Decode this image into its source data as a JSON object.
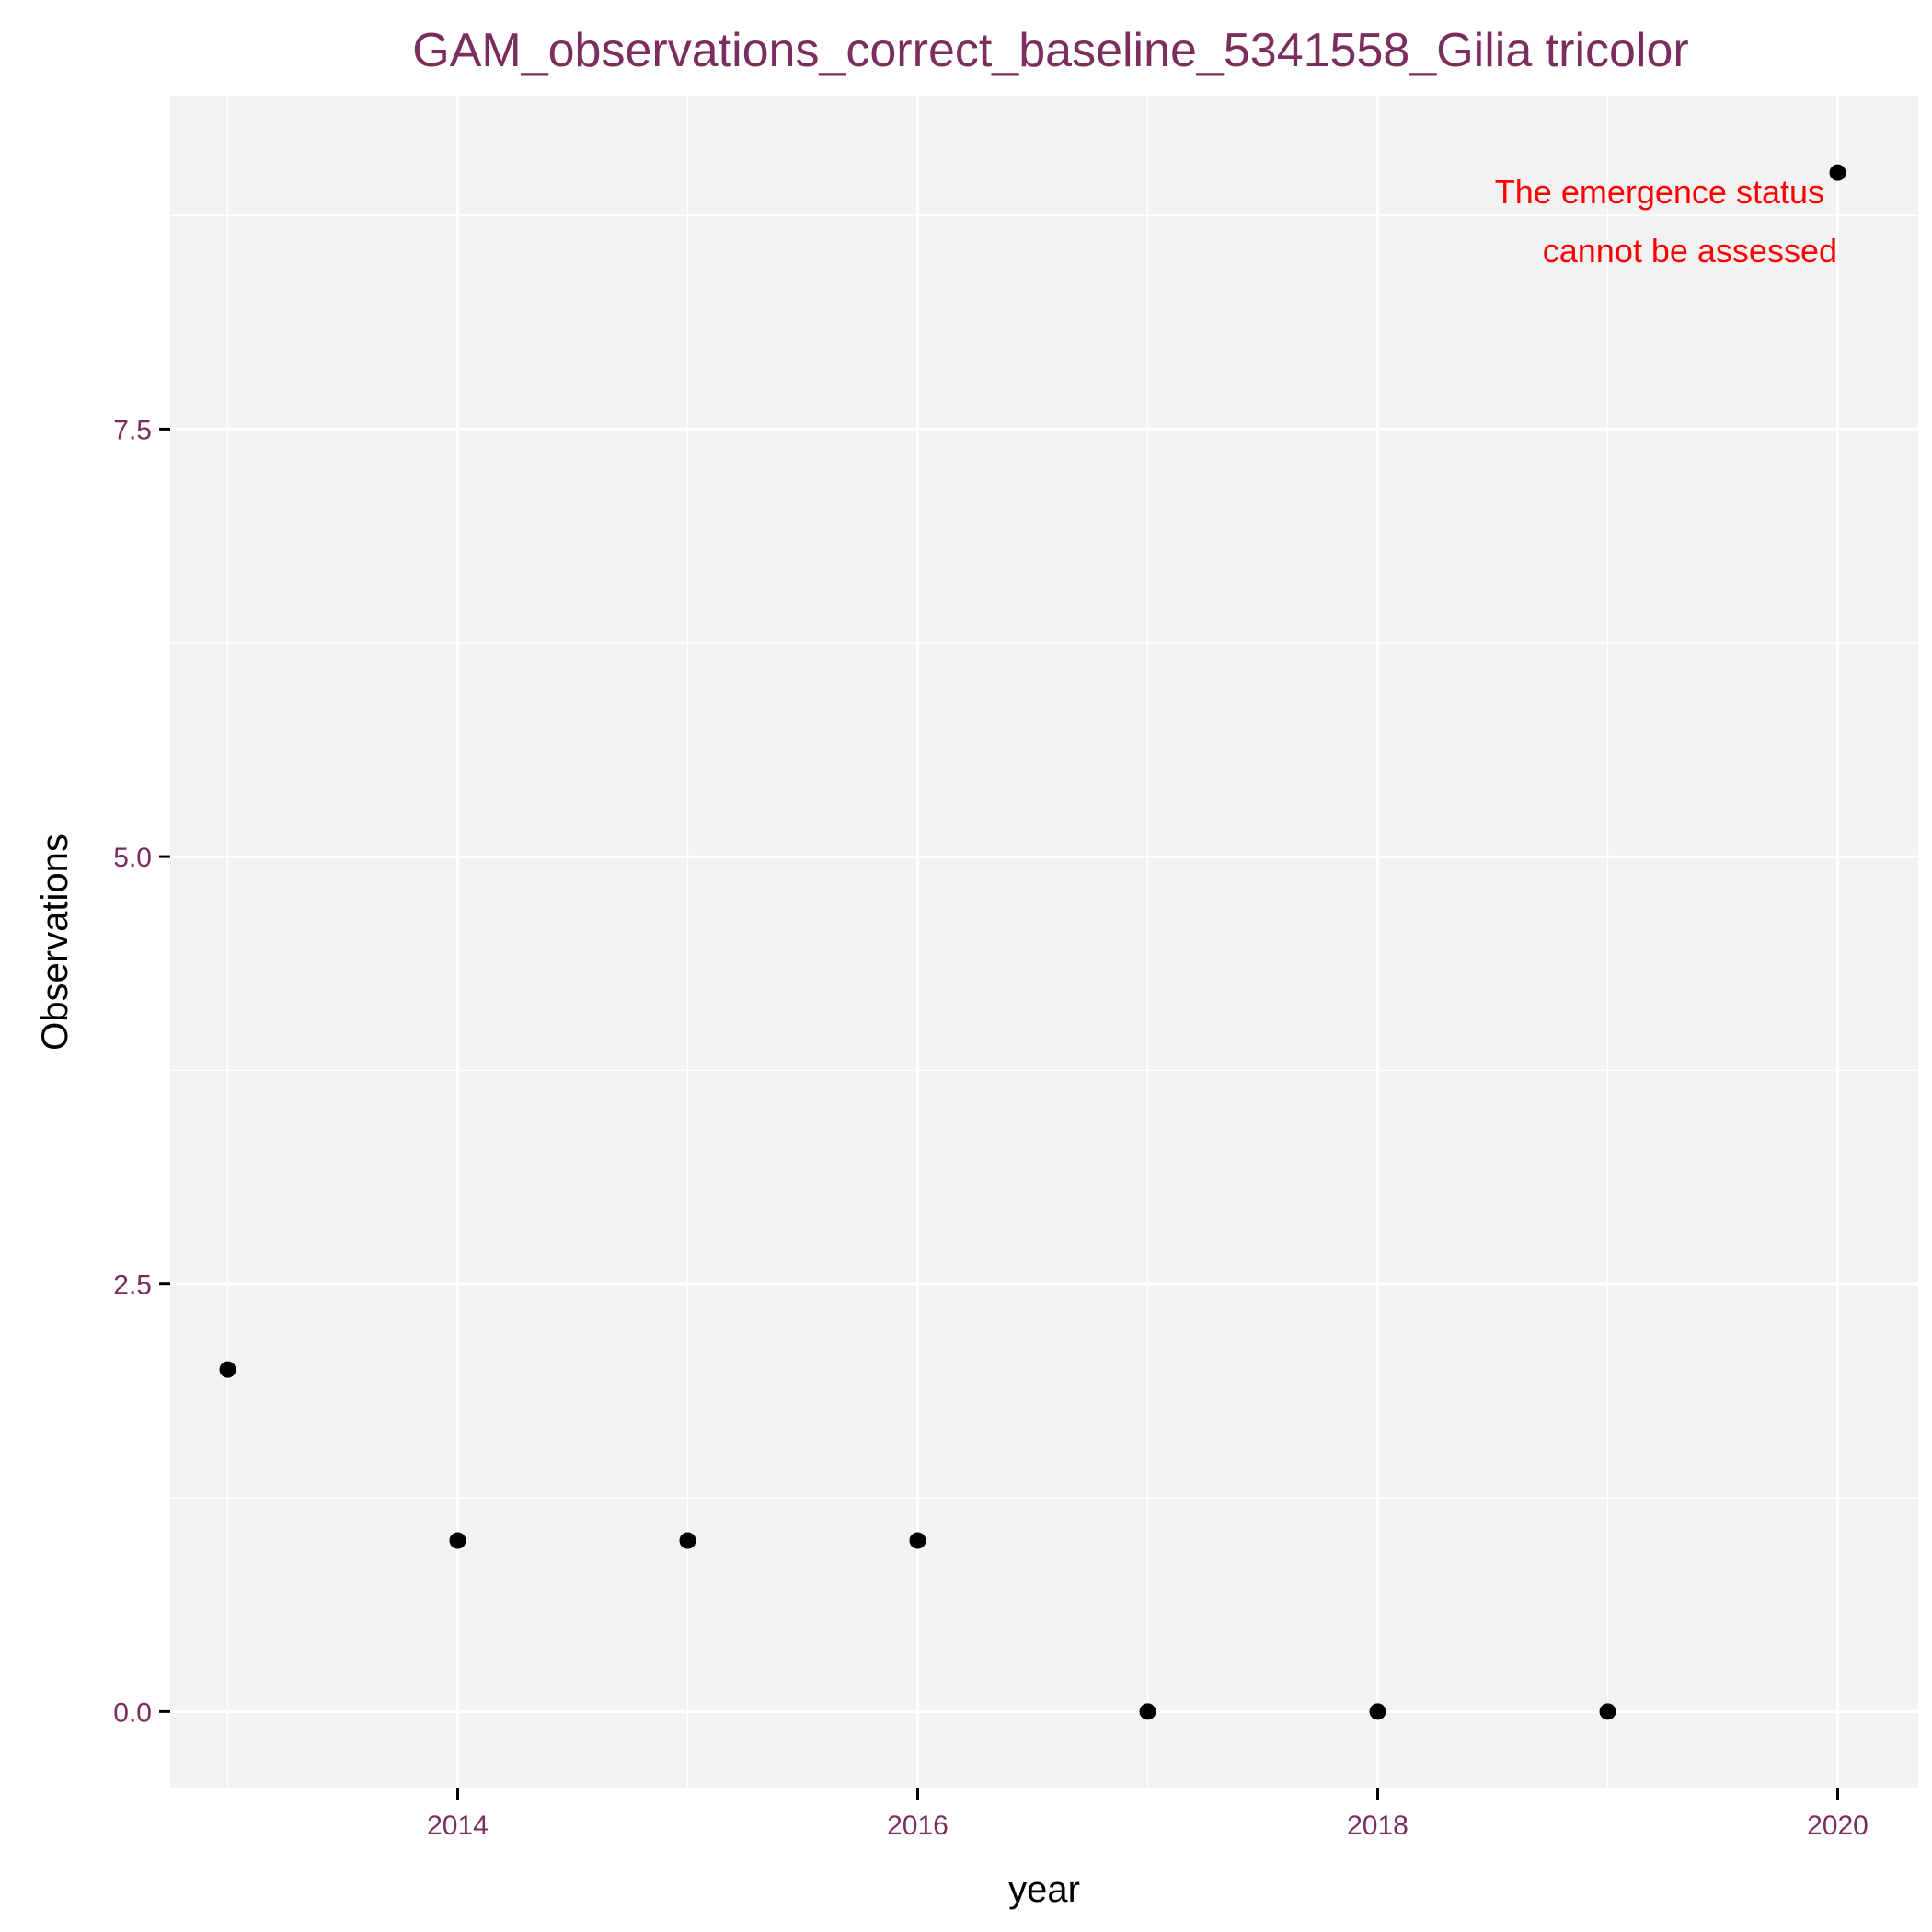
{
  "chart_data": {
    "type": "scatter",
    "title": "GAM_observations_correct_baseline_5341558_Gilia tricolor",
    "xlabel": "year",
    "ylabel": "Observations",
    "x": [
      2013,
      2014,
      2015,
      2016,
      2017,
      2018,
      2019,
      2020
    ],
    "y": [
      2,
      1,
      1,
      1,
      0,
      0,
      0,
      9
    ],
    "xlim": [
      2012.75,
      2020.35
    ],
    "ylim": [
      -0.45,
      9.45
    ],
    "x_ticks": [
      2014,
      2016,
      2018,
      2020
    ],
    "x_tick_labels": [
      "2014",
      "2016",
      "2018",
      "2020"
    ],
    "y_ticks": [
      0,
      2.5,
      5,
      7.5
    ],
    "y_tick_labels": [
      "0.0",
      "2.5",
      "5.0",
      "7.5"
    ],
    "grid": true,
    "annotation": [
      "The emergence status",
      "cannot be assessed"
    ],
    "colors": {
      "panel": "#f2f2f2",
      "grid": "#ffffff",
      "point": "#000000",
      "title": "#7b2d5e",
      "tick_labels": "#7b2d5e",
      "annotation": "#ff0000"
    }
  }
}
